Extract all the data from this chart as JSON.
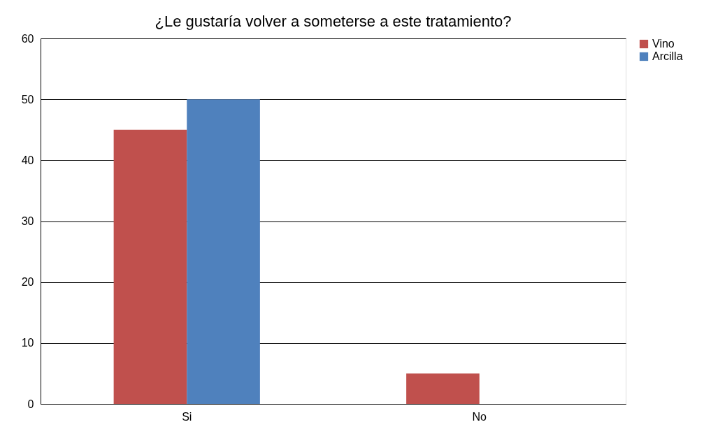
{
  "chart_data": {
    "type": "bar",
    "title": "¿Le gustaría volver a someterse a este tratamiento?",
    "categories": [
      "Si",
      "No"
    ],
    "series": [
      {
        "name": "Vino",
        "color": "#c0504d",
        "values": [
          45,
          5
        ]
      },
      {
        "name": "Arcilla",
        "color": "#4f81bd",
        "values": [
          50,
          0
        ]
      }
    ],
    "ylim": [
      0,
      60
    ],
    "yticks": [
      0,
      10,
      20,
      30,
      40,
      50,
      60
    ],
    "grid": "y",
    "legend": "right"
  }
}
